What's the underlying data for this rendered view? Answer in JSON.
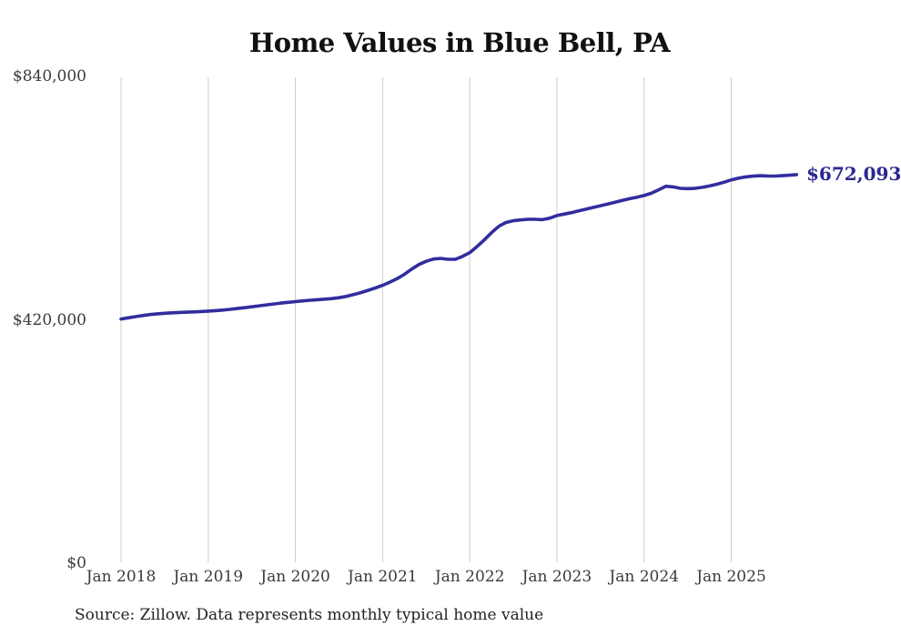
{
  "page": {
    "background_color": "#ffffff",
    "text_color": "#3a3a3a"
  },
  "footer": {
    "source_note": "Source: Zillow. Data represents monthly typical home value"
  },
  "chart_data": {
    "type": "line",
    "title": "Home Values in Blue Bell, PA",
    "series_name": "Typical home value",
    "cadence": "monthly",
    "x_start_month": "2018-01",
    "x_end_month": "2025-10",
    "x_tick_labels": [
      "Jan 2018",
      "Jan 2019",
      "Jan 2020",
      "Jan 2021",
      "Jan 2022",
      "Jan 2023",
      "Jan 2024",
      "Jan 2025"
    ],
    "y_ticks": [
      {
        "value": 0,
        "label": "$0"
      },
      {
        "value": 420000,
        "label": "$420,000"
      },
      {
        "value": 840000,
        "label": "$840,000"
      }
    ],
    "ylim": [
      0,
      840000
    ],
    "grid": "vertical-only",
    "legend_position": "none",
    "line_color": "#312d9e",
    "grid_color": "#cdcdcd",
    "end_label": "$672,093",
    "final_value": 672093,
    "values": [
      423000,
      425000,
      427000,
      429000,
      430600,
      431900,
      432900,
      433700,
      434300,
      434800,
      435300,
      435900,
      436600,
      437400,
      438400,
      439600,
      441000,
      442500,
      444100,
      445700,
      447300,
      448900,
      450400,
      451700,
      453000,
      454200,
      455300,
      456300,
      457200,
      458200,
      459700,
      462000,
      465000,
      468500,
      472400,
      476600,
      481000,
      486500,
      492500,
      500000,
      509000,
      517000,
      522500,
      526500,
      527500,
      526000,
      526000,
      531000,
      537500,
      548000,
      559500,
      572000,
      583000,
      589500,
      592500,
      594000,
      595000,
      595000,
      594500,
      597000,
      601500,
      604000,
      606500,
      609500,
      612500,
      615500,
      618500,
      621500,
      624500,
      627500,
      630500,
      633000,
      636000,
      640000,
      646000,
      652000,
      651000,
      648500,
      648000,
      648500,
      650200,
      652500,
      655500,
      659000,
      663000,
      666000,
      668200,
      669500,
      670200,
      669800,
      669700,
      670300,
      671000,
      672093
    ]
  }
}
